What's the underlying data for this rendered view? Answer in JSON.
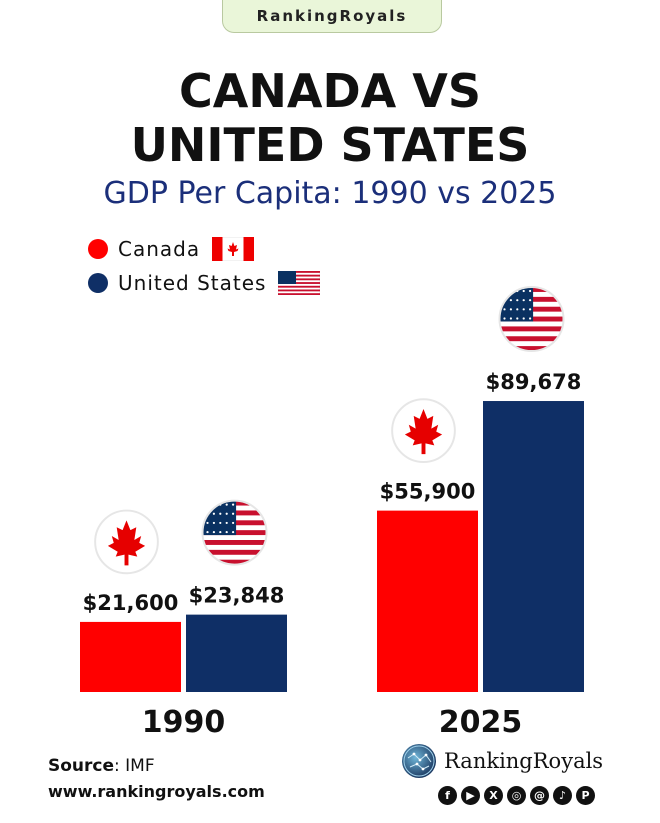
{
  "header": {
    "badge": "RankingRoyals",
    "title_line1": "CANADA  VS",
    "title_line2": "UNITED STATES",
    "subtitle": "GDP Per Capita: 1990 vs 2025"
  },
  "colors": {
    "canada": "#ff0000",
    "united_states": "#0f2f66",
    "subtitle": "#1b2f7a"
  },
  "chart_data": {
    "type": "bar",
    "title": "GDP Per Capita: 1990 vs 2025",
    "categories": [
      "1990",
      "2025"
    ],
    "series": [
      {
        "name": "Canada",
        "values": [
          21600,
          55900
        ],
        "labels": [
          "$21,600",
          "$55,900"
        ],
        "color": "#ff0000"
      },
      {
        "name": "United States",
        "values": [
          23848,
          89678
        ],
        "labels": [
          "$23,848",
          "$89,678"
        ],
        "color": "#0f2f66"
      }
    ],
    "ylim": [
      0,
      94000
    ],
    "grid": false,
    "legend": "top-left",
    "xlabel": "",
    "ylabel": ""
  },
  "footer": {
    "source_label": "Source",
    "source_value": ": IMF",
    "website": "www.rankingroyals.com",
    "brand": "RankingRoyals",
    "social_icons": [
      "facebook-icon",
      "youtube-icon",
      "x-icon",
      "instagram-icon",
      "threads-icon",
      "tiktok-icon",
      "pinterest-icon"
    ]
  }
}
